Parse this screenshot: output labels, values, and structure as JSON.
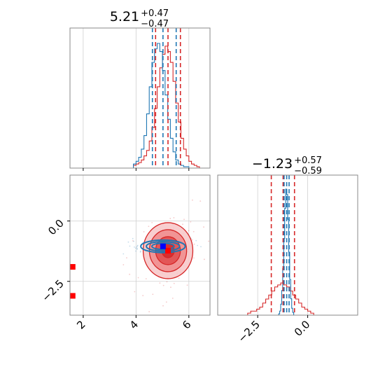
{
  "colors": {
    "sample_a": "#d62728",
    "sample_b": "#1f77b4",
    "grid": "#d0d0d0",
    "frame": "#888888",
    "truth_marker_a": "#ff0000",
    "truth_marker_b": "#0000ff"
  },
  "chart_data": [
    {
      "type": "area",
      "panel": "marginal-param-1",
      "title": {
        "main": "5.21",
        "sup": "+0.47",
        "sub": "−0.47"
      },
      "xlim": [
        1.5,
        6.8
      ],
      "grid": true,
      "series": [
        {
          "color": "#d62728",
          "kind": "step-histogram",
          "bin_edges_start": 3.9,
          "bin_width": 0.1,
          "counts": [
            2,
            3,
            4,
            6,
            9,
            13,
            20,
            30,
            44,
            60,
            74,
            84,
            90,
            86,
            78,
            64,
            48,
            34,
            22,
            14,
            9,
            5,
            3,
            2,
            1
          ],
          "quantile_lines": [
            4.74,
            5.21,
            5.68
          ]
        },
        {
          "color": "#1f77b4",
          "kind": "step-histogram",
          "bin_edges_start": 3.9,
          "bin_width": 0.1,
          "counts": [
            3,
            5,
            8,
            14,
            24,
            40,
            60,
            78,
            88,
            92,
            86,
            72,
            54,
            36,
            22,
            12,
            6,
            3,
            2,
            1,
            1
          ],
          "quantile_lines": [
            4.62,
            5.02,
            5.52
          ]
        }
      ]
    },
    {
      "type": "area",
      "panel": "marginal-param-2",
      "title": {
        "main": "−1.23",
        "sup": "+0.57",
        "sub": "−0.59"
      },
      "xlim": [
        -4.5,
        2.5
      ],
      "xticks": [
        -2.5,
        0.0
      ],
      "xtick_labels": [
        "−2.5",
        "0.0"
      ],
      "grid": true,
      "series": [
        {
          "color": "#d62728",
          "kind": "step-histogram",
          "bin_edges_start": -3.0,
          "bin_width": 0.15,
          "counts": [
            1,
            2,
            2,
            3,
            4,
            6,
            8,
            10,
            12,
            14,
            15,
            16,
            15,
            14,
            12,
            10,
            8,
            6,
            4,
            3,
            2,
            1
          ],
          "quantile_lines": [
            -1.82,
            -1.23,
            -0.66
          ]
        },
        {
          "color": "#1f77b4",
          "kind": "step-histogram",
          "bin_edges_start": -1.45,
          "bin_width": 0.05,
          "counts": [
            1,
            3,
            8,
            18,
            34,
            56,
            78,
            92,
            88,
            70,
            46,
            26,
            12,
            5,
            2
          ],
          "quantile_lines": [
            -1.18,
            -1.05,
            -0.93
          ]
        }
      ]
    },
    {
      "type": "scatter",
      "panel": "joint-param-1-vs-param-2",
      "xlim": [
        1.5,
        6.8
      ],
      "ylim": [
        -3.9,
        1.9
      ],
      "xticks": [
        2,
        4,
        6
      ],
      "xtick_labels": [
        "2",
        "4",
        "6"
      ],
      "yticks": [
        0.0,
        -2.5
      ],
      "ytick_labels": [
        "0.0",
        "−2.5"
      ],
      "grid": true,
      "contours": [
        {
          "color": "#d62728",
          "center": [
            5.21,
            -1.23
          ],
          "sigma": [
            0.47,
            0.58
          ],
          "levels": [
            0.5,
            1.0,
            1.5,
            2.0
          ]
        },
        {
          "color": "#1f77b4",
          "center": [
            5.02,
            -1.05
          ],
          "sigma": [
            0.42,
            0.13
          ],
          "levels": [
            1.0,
            1.5,
            2.0
          ]
        }
      ],
      "truth_points": [
        {
          "color": "#ff0000",
          "x": 5.21,
          "y": -1.23
        },
        {
          "color": "#0000ff",
          "x": 5.02,
          "y": -1.05
        },
        {
          "color": "#ff0000",
          "x": 1.6,
          "y": -1.9
        },
        {
          "color": "#ff0000",
          "x": 1.6,
          "y": -3.1
        }
      ]
    }
  ]
}
